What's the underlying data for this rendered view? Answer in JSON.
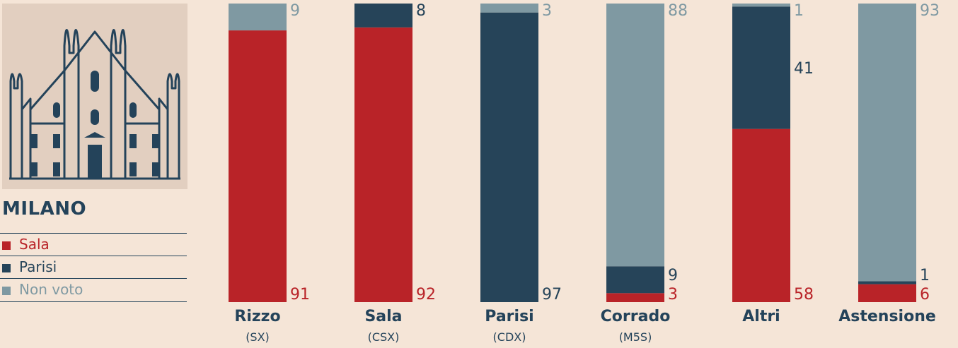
{
  "city": "MILANO",
  "legend": [
    {
      "label": "Sala",
      "color": "#b92328"
    },
    {
      "label": "Parisi",
      "color": "#264459"
    },
    {
      "label": "Non voto",
      "color": "#7f99a2"
    }
  ],
  "chart_data": {
    "type": "bar",
    "stacked": true,
    "ylim": [
      0,
      100
    ],
    "categories": [
      "Rizzo",
      "Sala",
      "Parisi",
      "Corrado",
      "Altri",
      "Astensione"
    ],
    "subcategories": [
      "(SX)",
      "(CSX)",
      "(CDX)",
      "(M5S)",
      "",
      ""
    ],
    "series": [
      {
        "name": "Sala",
        "color": "#b92328",
        "values": [
          91,
          92,
          0,
          3,
          58,
          6
        ]
      },
      {
        "name": "Parisi",
        "color": "#264459",
        "values": [
          0,
          8,
          97,
          9,
          41,
          1
        ]
      },
      {
        "name": "Non voto",
        "color": "#7f99a2",
        "values": [
          9,
          0,
          3,
          88,
          1,
          93
        ]
      }
    ]
  }
}
